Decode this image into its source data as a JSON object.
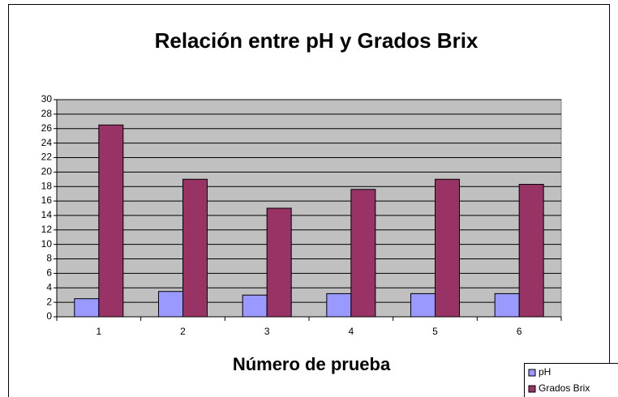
{
  "chart_data": {
    "type": "bar",
    "title": "Relación entre pH y Grados Brix",
    "x_label": "Número de prueba",
    "categories": [
      "1",
      "2",
      "3",
      "4",
      "5",
      "6"
    ],
    "series": [
      {
        "name": "pH",
        "color": "#9999ff",
        "values": [
          2.5,
          3.5,
          3.0,
          3.2,
          3.2,
          3.2
        ]
      },
      {
        "name": "Grados Brix",
        "color": "#993366",
        "values": [
          26.5,
          19,
          15,
          17.6,
          19,
          18.3
        ]
      }
    ],
    "ylim": [
      0,
      30
    ],
    "yticks": [
      0,
      2,
      4,
      6,
      8,
      10,
      12,
      14,
      16,
      18,
      20,
      22,
      24,
      26,
      28,
      30
    ],
    "grid": true,
    "legend": "bottom-right",
    "plot_background": "#c0c0c0"
  }
}
